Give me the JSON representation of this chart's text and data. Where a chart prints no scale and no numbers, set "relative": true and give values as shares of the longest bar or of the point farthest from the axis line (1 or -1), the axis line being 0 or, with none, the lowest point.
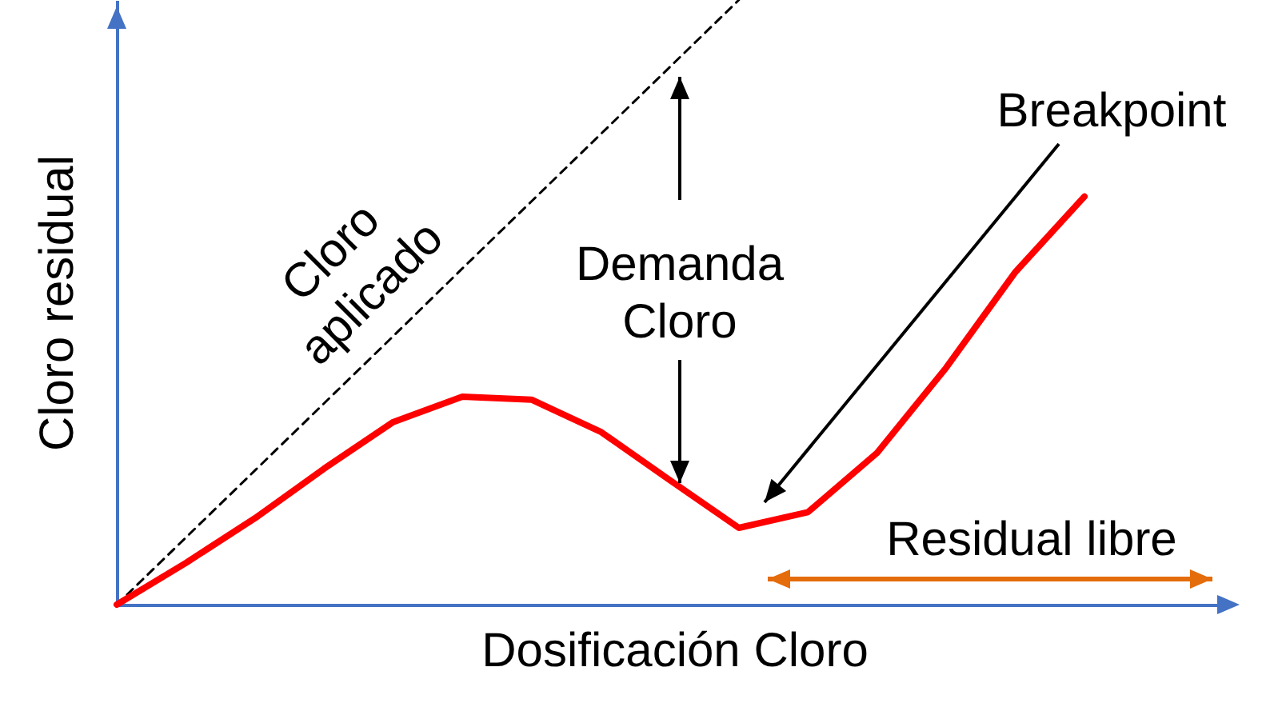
{
  "chart_data": {
    "type": "line",
    "relative": true,
    "xlabel": "Dosificación Cloro",
    "ylabel": "Cloro residual",
    "categories": [
      null,
      null,
      null,
      null,
      null,
      null,
      null,
      null,
      null,
      null,
      null,
      null,
      null,
      null,
      null
    ],
    "series": [
      {
        "color": "#000000",
        "line_style": "dashed",
        "values": [
          0,
          0.111,
          0.222,
          0.333,
          0.444,
          0.556,
          0.667,
          0.778,
          0.889,
          1,
          null,
          null,
          null,
          null,
          null
        ]
      },
      {
        "color": "#ff0000",
        "line_style": "solid",
        "values": [
          0,
          0.069,
          0.143,
          0.225,
          0.302,
          0.344,
          0.339,
          0.286,
          0.206,
          0.127,
          0.153,
          0.251,
          0.392,
          0.55,
          0.675
        ]
      }
    ],
    "annotations": [
      "Cloro aplicado",
      "Demanda Cloro",
      "Breakpoint",
      "Residual libre"
    ]
  }
}
